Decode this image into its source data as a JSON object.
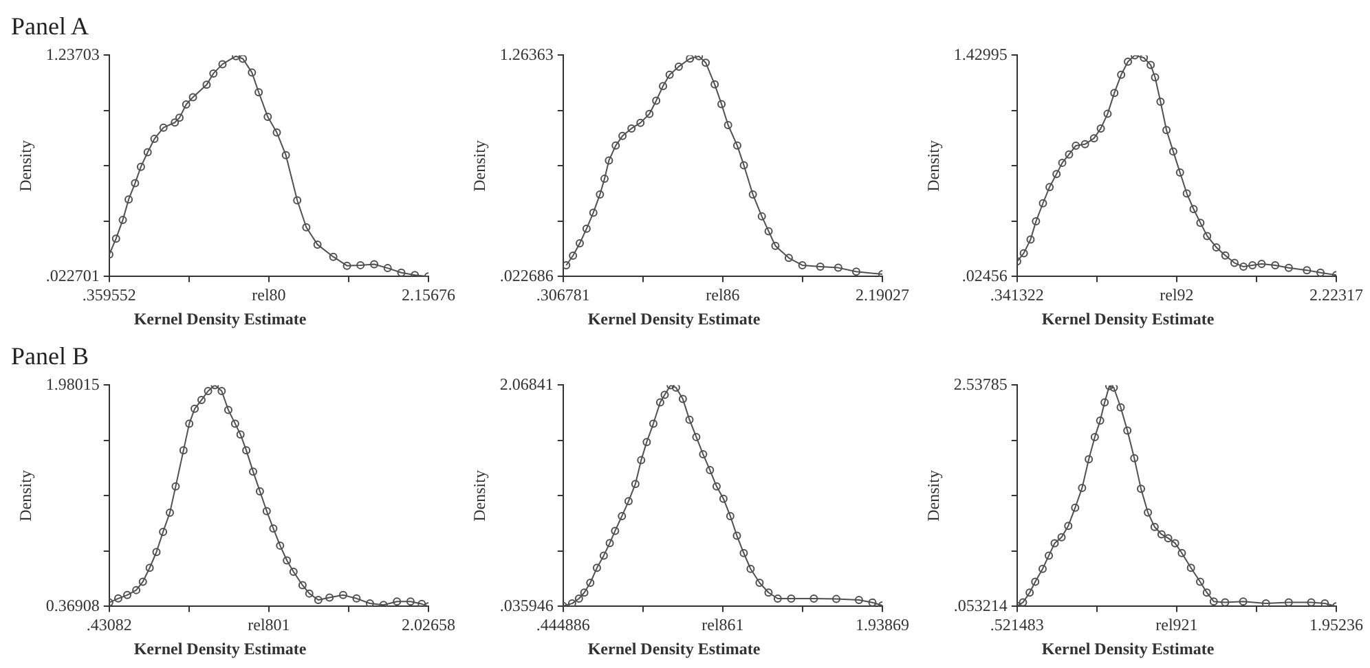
{
  "chart_data": [
    {
      "type": "line",
      "annotations": [
        "Panel A"
      ],
      "title": "Kernel Density Estimate",
      "xlabel": "rel80",
      "ylabel": "Density",
      "marker": "circle",
      "color": "#505050",
      "xlim": [
        0.359552,
        2.15676
      ],
      "xticks": [
        {
          "value": 0.359552,
          "label": ".359552"
        },
        {
          "value": 0.8089,
          "label": null
        },
        {
          "value": 1.2582,
          "label": null
        },
        {
          "value": 1.7075,
          "label": null
        },
        {
          "value": 2.15676,
          "label": "2.15676"
        }
      ],
      "ylim": [
        0.022701,
        1.23703
      ],
      "yticks": [
        {
          "value": 0.022701,
          "label": ".022701"
        },
        {
          "value": 0.3263,
          "label": null
        },
        {
          "value": 0.6299,
          "label": null
        },
        {
          "value": 0.9334,
          "label": null
        },
        {
          "value": 1.23703,
          "label": "1.23703"
        }
      ],
      "x": [
        0.36,
        0.398,
        0.436,
        0.469,
        0.505,
        0.538,
        0.576,
        0.614,
        0.665,
        0.729,
        0.755,
        0.793,
        0.831,
        0.908,
        0.946,
        0.997,
        1.073,
        1.112,
        1.163,
        1.201,
        1.252,
        1.303,
        1.354,
        1.418,
        1.469,
        1.532,
        1.621,
        1.698,
        1.774,
        1.851,
        1.927,
        2.004,
        2.08,
        2.156
      ],
      "values": [
        0.144,
        0.231,
        0.333,
        0.446,
        0.535,
        0.625,
        0.705,
        0.778,
        0.84,
        0.868,
        0.894,
        0.967,
        1.007,
        1.075,
        1.137,
        1.188,
        1.232,
        1.218,
        1.142,
        1.034,
        0.899,
        0.813,
        0.689,
        0.441,
        0.293,
        0.198,
        0.131,
        0.082,
        0.085,
        0.09,
        0.069,
        0.044,
        0.031,
        0.023
      ]
    },
    {
      "type": "line",
      "title": "Kernel Density Estimate",
      "xlabel": "rel86",
      "ylabel": "Density",
      "marker": "circle",
      "color": "#505050",
      "xlim": [
        0.306781,
        2.19027
      ],
      "xticks": [
        {
          "value": 0.306781,
          "label": ".306781"
        },
        {
          "value": 0.7777,
          "label": null
        },
        {
          "value": 1.2485,
          "label": null
        },
        {
          "value": 1.7194,
          "label": null
        },
        {
          "value": 2.19027,
          "label": "2.19027"
        }
      ],
      "ylim": [
        0.022686,
        1.26363
      ],
      "yticks": [
        {
          "value": 0.022686,
          "label": ".022686"
        },
        {
          "value": 0.3329,
          "label": null
        },
        {
          "value": 0.6432,
          "label": null
        },
        {
          "value": 0.9534,
          "label": null
        },
        {
          "value": 1.26363,
          "label": "1.26363"
        }
      ],
      "x": [
        0.325,
        0.365,
        0.405,
        0.445,
        0.485,
        0.524,
        0.551,
        0.577,
        0.617,
        0.657,
        0.71,
        0.763,
        0.816,
        0.856,
        0.896,
        0.935,
        0.989,
        1.055,
        1.108,
        1.148,
        1.201,
        1.241,
        1.28,
        1.334,
        1.373,
        1.426,
        1.479,
        1.519,
        1.559,
        1.638,
        1.718,
        1.824,
        1.93,
        2.036,
        2.19
      ],
      "values": [
        0.086,
        0.14,
        0.209,
        0.291,
        0.381,
        0.483,
        0.571,
        0.674,
        0.757,
        0.811,
        0.853,
        0.885,
        0.935,
        1.009,
        1.091,
        1.154,
        1.2,
        1.245,
        1.258,
        1.222,
        1.1,
        0.99,
        0.872,
        0.757,
        0.647,
        0.483,
        0.36,
        0.277,
        0.195,
        0.127,
        0.086,
        0.078,
        0.072,
        0.05,
        0.036
      ]
    },
    {
      "type": "line",
      "title": "Kernel Density Estimate",
      "xlabel": "rel92",
      "ylabel": "Density",
      "marker": "circle",
      "color": "#505050",
      "xlim": [
        0.341322,
        2.22317
      ],
      "xticks": [
        {
          "value": 0.341322,
          "label": ".341322"
        },
        {
          "value": 0.8118,
          "label": null
        },
        {
          "value": 1.2822,
          "label": null
        },
        {
          "value": 1.7527,
          "label": null
        },
        {
          "value": 2.22317,
          "label": "2.22317"
        }
      ],
      "ylim": [
        0.02456,
        1.42995
      ],
      "yticks": [
        {
          "value": 0.02456,
          "label": ".02456"
        },
        {
          "value": 0.3759,
          "label": null
        },
        {
          "value": 0.7273,
          "label": null
        },
        {
          "value": 1.0786,
          "label": null
        },
        {
          "value": 1.42995,
          "label": "1.42995"
        }
      ],
      "x": [
        0.342,
        0.381,
        0.421,
        0.453,
        0.494,
        0.533,
        0.574,
        0.608,
        0.648,
        0.688,
        0.742,
        0.795,
        0.835,
        0.875,
        0.915,
        0.955,
        0.995,
        1.035,
        1.089,
        1.129,
        1.155,
        1.187,
        1.222,
        1.262,
        1.302,
        1.342,
        1.382,
        1.422,
        1.462,
        1.516,
        1.569,
        1.623,
        1.676,
        1.729,
        1.783,
        1.863,
        1.943,
        2.05,
        2.13,
        2.223
      ],
      "values": [
        0.121,
        0.173,
        0.26,
        0.375,
        0.49,
        0.593,
        0.676,
        0.747,
        0.8,
        0.856,
        0.865,
        0.903,
        0.965,
        1.058,
        1.191,
        1.306,
        1.389,
        1.429,
        1.414,
        1.368,
        1.29,
        1.135,
        0.955,
        0.819,
        0.685,
        0.552,
        0.453,
        0.366,
        0.282,
        0.21,
        0.158,
        0.111,
        0.087,
        0.096,
        0.105,
        0.096,
        0.08,
        0.065,
        0.049,
        0.034
      ]
    },
    {
      "type": "line",
      "annotations": [
        "Panel B"
      ],
      "title": "Kernel Density Estimate",
      "xlabel": "rel801",
      "ylabel": "Density",
      "marker": "circle",
      "color": "#505050",
      "xlim": [
        0.43082,
        2.02658
      ],
      "xticks": [
        {
          "value": 0.43082,
          "label": ".43082"
        },
        {
          "value": 0.8298,
          "label": null
        },
        {
          "value": 1.2287,
          "label": null
        },
        {
          "value": 1.6276,
          "label": null
        },
        {
          "value": 2.02658,
          "label": "2.02658"
        }
      ],
      "ylim": [
        0.36908,
        1.98015
      ],
      "yticks": [
        {
          "value": 0.36908,
          "label": "0.36908"
        },
        {
          "value": 0.7718,
          "label": null
        },
        {
          "value": 1.1746,
          "label": null
        },
        {
          "value": 1.5774,
          "label": null
        },
        {
          "value": 1.98015,
          "label": "1.98015"
        }
      ],
      "x": [
        0.431,
        0.476,
        0.521,
        0.566,
        0.599,
        0.633,
        0.667,
        0.7,
        0.734,
        0.763,
        0.802,
        0.831,
        0.858,
        0.892,
        0.925,
        0.959,
        0.993,
        1.026,
        1.06,
        1.087,
        1.116,
        1.15,
        1.184,
        1.218,
        1.251,
        1.285,
        1.319,
        1.352,
        1.397,
        1.431,
        1.476,
        1.532,
        1.6,
        1.667,
        1.734,
        1.802,
        1.869,
        1.937,
        1.993,
        2.026
      ],
      "values": [
        0.398,
        0.427,
        0.452,
        0.488,
        0.549,
        0.65,
        0.765,
        0.912,
        1.052,
        1.243,
        1.505,
        1.7,
        1.808,
        1.872,
        1.937,
        1.98,
        1.937,
        1.8,
        1.7,
        1.621,
        1.505,
        1.351,
        1.207,
        1.063,
        0.937,
        0.812,
        0.704,
        0.621,
        0.524,
        0.463,
        0.416,
        0.434,
        0.452,
        0.427,
        0.391,
        0.38,
        0.405,
        0.405,
        0.387,
        0.37
      ]
    },
    {
      "type": "line",
      "title": "Kernel Density Estimate",
      "xlabel": "rel861",
      "ylabel": "Density",
      "marker": "circle",
      "color": "#505050",
      "xlim": [
        0.444886,
        1.93869
      ],
      "xticks": [
        {
          "value": 0.444886,
          "label": ".444886"
        },
        {
          "value": 0.8183,
          "label": null
        },
        {
          "value": 1.1918,
          "label": null
        },
        {
          "value": 1.5652,
          "label": null
        },
        {
          "value": 1.93869,
          "label": "1.93869"
        }
      ],
      "ylim": [
        0.035946,
        2.06841
      ],
      "yticks": [
        {
          "value": 0.035946,
          "label": ".035946"
        },
        {
          "value": 0.5441,
          "label": null
        },
        {
          "value": 1.0522,
          "label": null
        },
        {
          "value": 1.5603,
          "label": null
        },
        {
          "value": 2.06841,
          "label": "2.06841"
        }
      ],
      "x": [
        0.445,
        0.487,
        0.519,
        0.544,
        0.572,
        0.603,
        0.635,
        0.663,
        0.688,
        0.72,
        0.751,
        0.783,
        0.81,
        0.836,
        0.867,
        0.899,
        0.92,
        0.948,
        0.973,
        1.005,
        1.036,
        1.068,
        1.1,
        1.132,
        1.163,
        1.195,
        1.227,
        1.258,
        1.29,
        1.322,
        1.364,
        1.406,
        1.449,
        1.512,
        1.618,
        1.723,
        1.829,
        1.892,
        1.938
      ],
      "values": [
        0.04,
        0.063,
        0.108,
        0.163,
        0.253,
        0.39,
        0.503,
        0.617,
        0.73,
        0.866,
        1.002,
        1.161,
        1.379,
        1.546,
        1.714,
        1.91,
        1.98,
        2.068,
        2.046,
        1.941,
        1.751,
        1.592,
        1.433,
        1.288,
        1.138,
        1.025,
        0.866,
        0.685,
        0.526,
        0.381,
        0.253,
        0.163,
        0.108,
        0.108,
        0.108,
        0.104,
        0.095,
        0.072,
        0.045
      ]
    },
    {
      "type": "line",
      "title": "Kernel Density Estimate",
      "xlabel": "rel921",
      "ylabel": "Density",
      "marker": "circle",
      "color": "#505050",
      "xlim": [
        0.521483,
        1.95236
      ],
      "xticks": [
        {
          "value": 0.521483,
          "label": ".521483"
        },
        {
          "value": 0.8792,
          "label": null
        },
        {
          "value": 1.2369,
          "label": null
        },
        {
          "value": 1.5946,
          "label": null
        },
        {
          "value": 1.95236,
          "label": "1.95236"
        }
      ],
      "ylim": [
        0.053214,
        2.53785
      ],
      "yticks": [
        {
          "value": 0.053214,
          "label": ".053214"
        },
        {
          "value": 0.6744,
          "label": null
        },
        {
          "value": 1.2955,
          "label": null
        },
        {
          "value": 1.9167,
          "label": null
        },
        {
          "value": 2.53785,
          "label": "2.53785"
        }
      ],
      "x": [
        0.522,
        0.548,
        0.578,
        0.603,
        0.636,
        0.664,
        0.69,
        0.721,
        0.751,
        0.782,
        0.813,
        0.843,
        0.87,
        0.894,
        0.914,
        0.935,
        0.955,
        0.986,
        1.016,
        1.047,
        1.077,
        1.108,
        1.138,
        1.169,
        1.199,
        1.23,
        1.26,
        1.301,
        1.342,
        1.372,
        1.403,
        1.454,
        1.535,
        1.637,
        1.739,
        1.84,
        1.901,
        1.952
      ],
      "values": [
        0.059,
        0.098,
        0.209,
        0.33,
        0.475,
        0.624,
        0.763,
        0.83,
        0.957,
        1.162,
        1.384,
        1.706,
        1.955,
        2.139,
        2.344,
        2.527,
        2.51,
        2.288,
        2.028,
        1.717,
        1.373,
        1.107,
        0.946,
        0.863,
        0.819,
        0.763,
        0.652,
        0.486,
        0.33,
        0.209,
        0.109,
        0.098,
        0.109,
        0.087,
        0.098,
        0.098,
        0.087,
        0.054
      ]
    }
  ]
}
